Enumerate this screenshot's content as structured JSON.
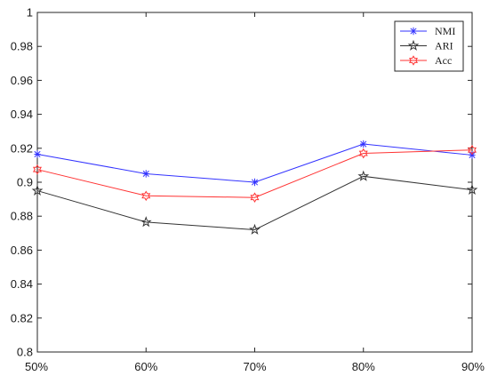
{
  "chart_data": {
    "type": "line",
    "title": "",
    "xlabel": "",
    "ylabel": "",
    "categories": [
      "50%",
      "60%",
      "70%",
      "80%",
      "90%"
    ],
    "ylim": [
      0.8,
      1.0
    ],
    "yticks": [
      0.8,
      0.82,
      0.84,
      0.86,
      0.88,
      0.9,
      0.92,
      0.94,
      0.96,
      0.98,
      1.0
    ],
    "ytick_labels": [
      "0.8",
      "0.82",
      "0.84",
      "0.86",
      "0.88",
      "0.9",
      "0.92",
      "0.94",
      "0.96",
      "0.98",
      "1"
    ],
    "grid": false,
    "legend_position": "top-right",
    "series": [
      {
        "name": "NMI",
        "color": "#3333ff",
        "marker": "asterisk",
        "values": [
          0.9165,
          0.905,
          0.9,
          0.9225,
          0.916
        ]
      },
      {
        "name": "ARI",
        "color": "#333333",
        "marker": "pentagram",
        "values": [
          0.895,
          0.8765,
          0.872,
          0.9035,
          0.8955
        ]
      },
      {
        "name": "Acc",
        "color": "#ff3333",
        "marker": "hexagram",
        "values": [
          0.9075,
          0.892,
          0.891,
          0.917,
          0.919
        ]
      }
    ]
  }
}
